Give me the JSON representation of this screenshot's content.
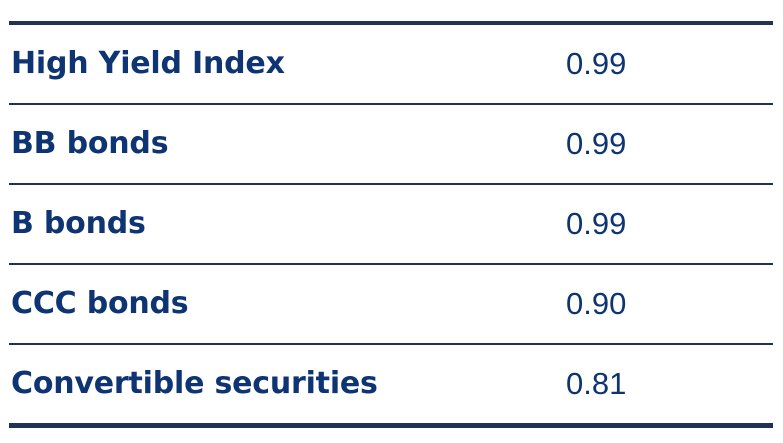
{
  "table": {
    "rows": [
      {
        "label": "High Yield Index",
        "value": "0.99"
      },
      {
        "label": "BB bonds",
        "value": "0.99"
      },
      {
        "label": "B bonds",
        "value": "0.99"
      },
      {
        "label": "CCC bonds",
        "value": "0.90"
      },
      {
        "label": "Convertible securities",
        "value": "0.81"
      }
    ]
  },
  "colors": {
    "text": "#0e3473",
    "rule": "#203354"
  }
}
